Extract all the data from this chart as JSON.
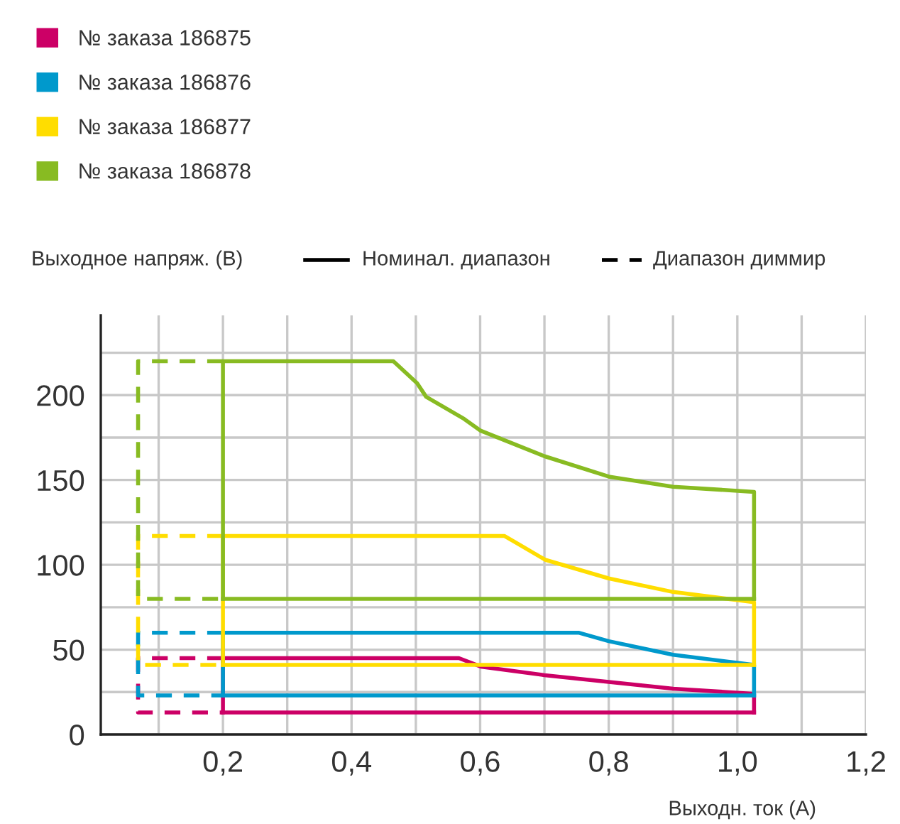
{
  "chart_data": {
    "type": "line",
    "xlabel": "Выходн. ток (А)",
    "ylabel": "Выходное напряж. (В)",
    "annotations": [
      "Номинал. диапазон",
      "Диапазон диммир"
    ],
    "xlim": [
      0.01,
      1.2
    ],
    "ylim": [
      0,
      247
    ],
    "xticks": [
      {
        "value": 0.1,
        "label": null
      },
      {
        "value": 0.2,
        "label": "0,2"
      },
      {
        "value": 0.3,
        "label": null
      },
      {
        "value": 0.4,
        "label": "0,4"
      },
      {
        "value": 0.5,
        "label": null
      },
      {
        "value": 0.6,
        "label": "0,6"
      },
      {
        "value": 0.7,
        "label": null
      },
      {
        "value": 0.8,
        "label": "0,8"
      },
      {
        "value": 0.9,
        "label": null
      },
      {
        "value": 1.0,
        "label": "1,0"
      },
      {
        "value": 1.1,
        "label": null
      },
      {
        "value": 1.2,
        "label": "1,2"
      }
    ],
    "yticks": [
      0,
      {
        "value": 25,
        "label": null
      },
      50,
      {
        "value": 75,
        "label": null
      },
      100,
      {
        "value": 125,
        "label": null
      },
      150,
      {
        "value": 175,
        "label": null
      },
      200,
      {
        "value": 225,
        "label": null
      }
    ],
    "grid": true,
    "legend": "top left",
    "series": [
      {
        "name": "№ заказа 186875",
        "color": "#cc0066",
        "line_style": "solid",
        "x": [
          0.2,
          0.2,
          0.567,
          0.601,
          0.7,
          0.8,
          0.9,
          1.026,
          1.026
        ],
        "values": [
          13,
          45,
          45,
          40,
          35,
          31,
          27,
          24,
          13
        ]
      },
      {
        "color": "#cc0066",
        "line_style": "solid",
        "x": [
          0.2,
          1.026
        ],
        "values": [
          13,
          13
        ]
      },
      {
        "color": "#cc0066",
        "line_style": "dashed",
        "x": [
          0.2,
          0.068,
          0.068,
          0.2
        ],
        "values": [
          45,
          45,
          13,
          13
        ]
      },
      {
        "name": "№ заказа 186876",
        "color": "#0099cc",
        "line_style": "solid",
        "x": [
          0.2,
          0.2,
          0.753,
          0.8,
          0.9,
          1.026,
          1.026
        ],
        "values": [
          23,
          60,
          60,
          55,
          47,
          41,
          23
        ]
      },
      {
        "color": "#0099cc",
        "line_style": "solid",
        "x": [
          0.2,
          1.026
        ],
        "values": [
          23,
          23
        ]
      },
      {
        "color": "#0099cc",
        "line_style": "dashed",
        "x": [
          0.2,
          0.068,
          0.068,
          0.2
        ],
        "values": [
          60,
          60,
          23,
          23
        ]
      },
      {
        "name": "№ заказа 186877",
        "color": "#ffdd00",
        "line_style": "solid",
        "x": [
          0.2,
          0.2,
          0.638,
          0.701,
          0.8,
          0.9,
          1.026,
          1.026
        ],
        "values": [
          41,
          117,
          117,
          103,
          92,
          84,
          78,
          41
        ]
      },
      {
        "color": "#ffdd00",
        "line_style": "solid",
        "x": [
          0.2,
          1.026
        ],
        "values": [
          41,
          41
        ]
      },
      {
        "color": "#ffdd00",
        "line_style": "dashed",
        "x": [
          0.2,
          0.068,
          0.068,
          0.2
        ],
        "values": [
          117,
          117,
          41,
          41
        ]
      },
      {
        "name": "№ заказа 186878",
        "color": "#88bb22",
        "line_style": "solid",
        "x": [
          0.2,
          0.2,
          0.465,
          0.502,
          0.516,
          0.575,
          0.601,
          0.7,
          0.8,
          0.9,
          1.026,
          1.026
        ],
        "values": [
          80,
          220,
          220,
          207,
          199,
          186,
          179,
          164,
          152,
          146,
          143,
          80
        ]
      },
      {
        "color": "#88bb22",
        "line_style": "solid",
        "x": [
          0.2,
          1.026
        ],
        "values": [
          80,
          80
        ]
      },
      {
        "color": "#88bb22",
        "line_style": "dashed",
        "x": [
          0.2,
          0.068,
          0.068,
          0.2
        ],
        "values": [
          220,
          220,
          80,
          80
        ]
      }
    ]
  }
}
